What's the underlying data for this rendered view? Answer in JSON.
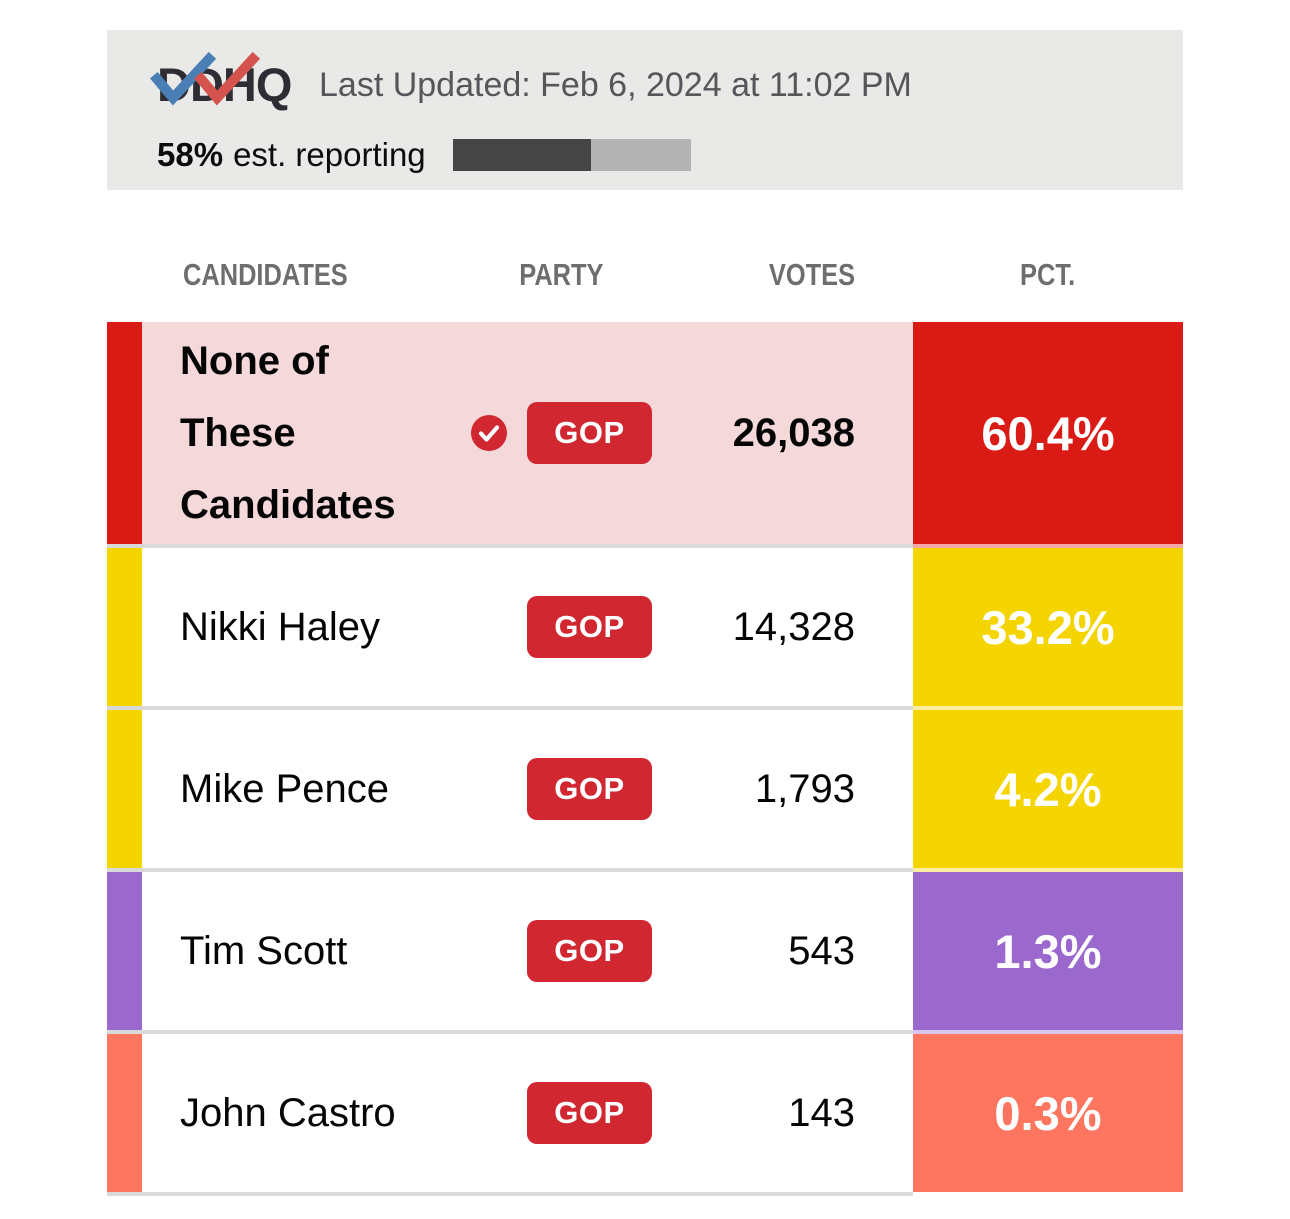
{
  "header": {
    "logo_text": "DDHQ",
    "last_updated": "Last Updated: Feb 6, 2024 at 11:02 PM",
    "reporting_pct": "58%",
    "reporting_label": "est. reporting",
    "progress_percent": 58
  },
  "columns": {
    "candidates": "CANDIDATES",
    "party": "PARTY",
    "votes": "VOTES",
    "pct": "PCT."
  },
  "rows": [
    {
      "name": "None of These Candidates",
      "party": "GOP",
      "votes": "26,038",
      "pct": "60.4%",
      "winner": true,
      "color": "#da1b15",
      "row_bg": "#f5d9da"
    },
    {
      "name": "Nikki Haley",
      "party": "GOP",
      "votes": "14,328",
      "pct": "33.2%",
      "winner": false,
      "color": "#f4d502",
      "row_bg": "#ffffff"
    },
    {
      "name": "Mike Pence",
      "party": "GOP",
      "votes": "1,793",
      "pct": "4.2%",
      "winner": false,
      "color": "#f4d502",
      "row_bg": "#ffffff"
    },
    {
      "name": "Tim Scott",
      "party": "GOP",
      "votes": "543",
      "pct": "1.3%",
      "winner": false,
      "color": "#9b68ce",
      "row_bg": "#ffffff"
    },
    {
      "name": "John Castro",
      "party": "GOP",
      "votes": "143",
      "pct": "0.3%",
      "winner": false,
      "color": "#fe765f",
      "row_bg": "#ffffff"
    }
  ],
  "colors": {
    "badge_red": "#d02731",
    "check_red": "#d02731",
    "panel_bg": "#e9e9e8",
    "progress_dark": "#454545",
    "progress_light": "#b3b3b3",
    "logo_blue": "#4a7fb5",
    "logo_red": "#d5534e",
    "separator": "#d9d9d9"
  }
}
